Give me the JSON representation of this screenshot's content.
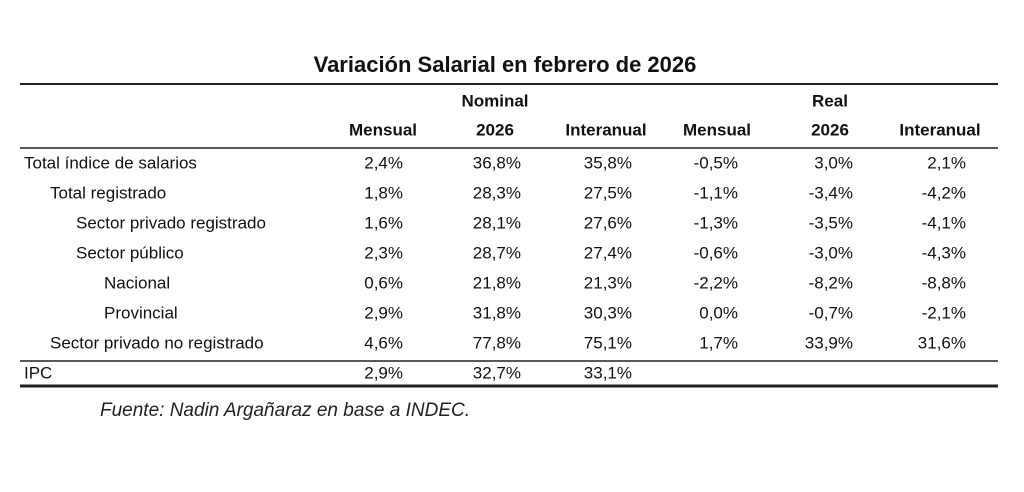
{
  "header": {
    "title": "Variación Salarial en febrero de 2026"
  },
  "table": {
    "groups": [
      "Nominal",
      "Real"
    ],
    "columns": [
      "Mensual",
      "2026",
      "Interanual",
      "Mensual",
      "2026",
      "Interanual"
    ],
    "rows": [
      [
        "Total índice de salarios",
        "2,4%",
        "36,8%",
        "35,8%",
        "-0,5%",
        "3,0%",
        "2,1%"
      ],
      [
        "Total registrado",
        "1,8%",
        "28,3%",
        "27,5%",
        "-1,1%",
        "-3,4%",
        "-4,2%"
      ],
      [
        "Sector privado registrado",
        "1,6%",
        "28,1%",
        "27,6%",
        "-1,3%",
        "-3,5%",
        "-4,1%"
      ],
      [
        "Sector público",
        "2,3%",
        "28,7%",
        "27,4%",
        "-0,6%",
        "-3,0%",
        "-4,3%"
      ],
      [
        "Nacional",
        "0,6%",
        "21,8%",
        "21,3%",
        "-2,2%",
        "-8,2%",
        "-8,8%"
      ],
      [
        "Provincial",
        "2,9%",
        "31,8%",
        "30,3%",
        "0,0%",
        "-0,7%",
        "-2,1%"
      ],
      [
        "Sector privado no registrado",
        "4,6%",
        "77,8%",
        "75,1%",
        "1,7%",
        "33,9%",
        "31,6%"
      ],
      [
        "IPC",
        "2,9%",
        "32,7%",
        "33,1%"
      ]
    ]
  },
  "footer": {
    "source": "Fuente: Nadin Argañaraz en base a INDEC."
  }
}
